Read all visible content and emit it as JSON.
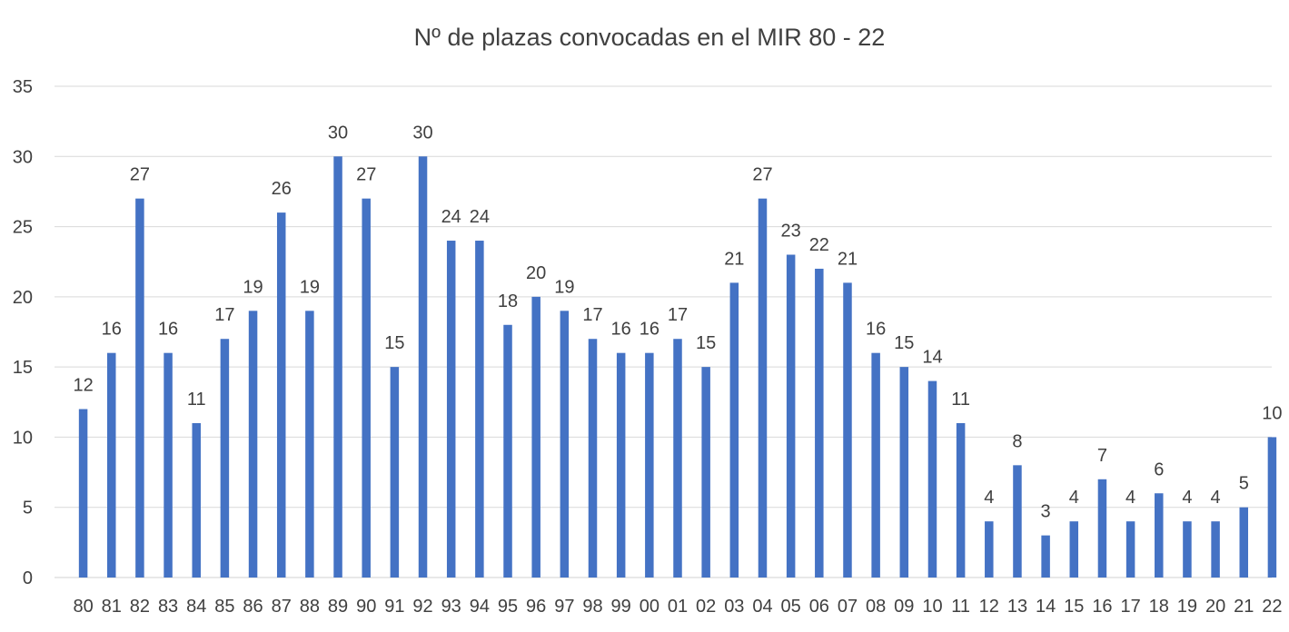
{
  "chart_data": {
    "type": "bar",
    "title": "Nº de plazas convocadas en el MIR 80 - 22",
    "xlabel": "",
    "ylabel": "",
    "ylim": [
      0,
      35
    ],
    "yticks": [
      0,
      5,
      10,
      15,
      20,
      25,
      30,
      35
    ],
    "grid": true,
    "legend": "none",
    "bar_color": "#4472c4",
    "categories": [
      "80",
      "81",
      "82",
      "83",
      "84",
      "85",
      "86",
      "87",
      "88",
      "89",
      "90",
      "91",
      "92",
      "93",
      "94",
      "95",
      "96",
      "97",
      "98",
      "99",
      "00",
      "01",
      "02",
      "03",
      "04",
      "05",
      "06",
      "07",
      "08",
      "09",
      "10",
      "11",
      "12",
      "13",
      "14",
      "15",
      "16",
      "17",
      "18",
      "19",
      "20",
      "21",
      "22"
    ],
    "values": [
      12,
      16,
      27,
      16,
      11,
      17,
      19,
      26,
      19,
      30,
      27,
      15,
      30,
      24,
      24,
      18,
      20,
      19,
      17,
      16,
      16,
      17,
      15,
      21,
      27,
      23,
      22,
      21,
      16,
      15,
      14,
      11,
      4,
      8,
      3,
      4,
      7,
      4,
      6,
      4,
      4,
      5,
      10
    ]
  }
}
